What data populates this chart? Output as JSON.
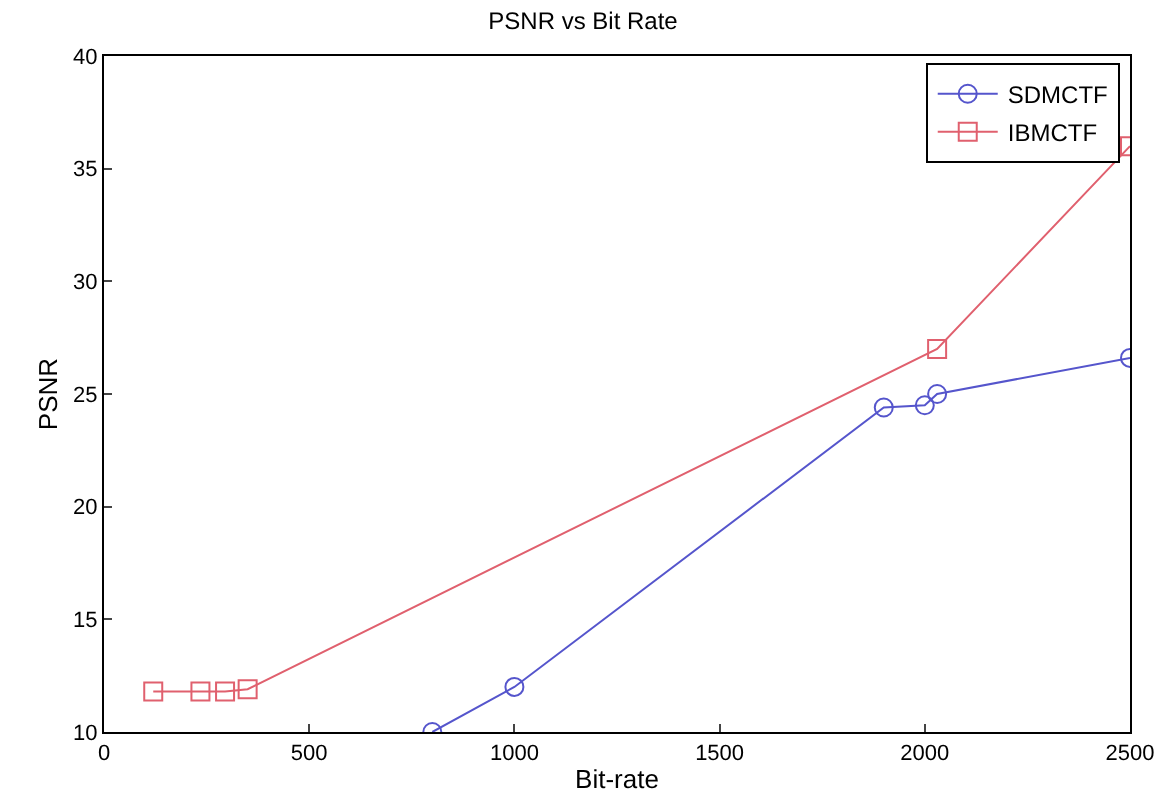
{
  "chart_data": {
    "type": "line",
    "title": "PSNR vs Bit Rate",
    "xlabel": "Bit-rate",
    "ylabel": "PSNR",
    "xlim": [
      0,
      2500
    ],
    "xticks": [
      0,
      500,
      1000,
      1500,
      2000,
      2500
    ],
    "ylim": [
      10,
      40
    ],
    "yticks": [
      10,
      15,
      20,
      25,
      30,
      35,
      40
    ],
    "grid": false,
    "legend": "top right",
    "line_style": "solid",
    "series": [
      {
        "name": "SDMCTF",
        "color": "#5555cc",
        "marker": "circle",
        "x": [
          800,
          1000,
          1900,
          2000,
          2030,
          2500
        ],
        "values": [
          10,
          12,
          24.4,
          24.5,
          25,
          26.6
        ]
      },
      {
        "name": "IBMCTF",
        "color": "#e0606e",
        "marker": "square",
        "x": [
          120,
          235,
          295,
          350,
          2030,
          2500
        ],
        "values": [
          11.8,
          11.8,
          11.8,
          11.9,
          27,
          36
        ]
      }
    ]
  }
}
